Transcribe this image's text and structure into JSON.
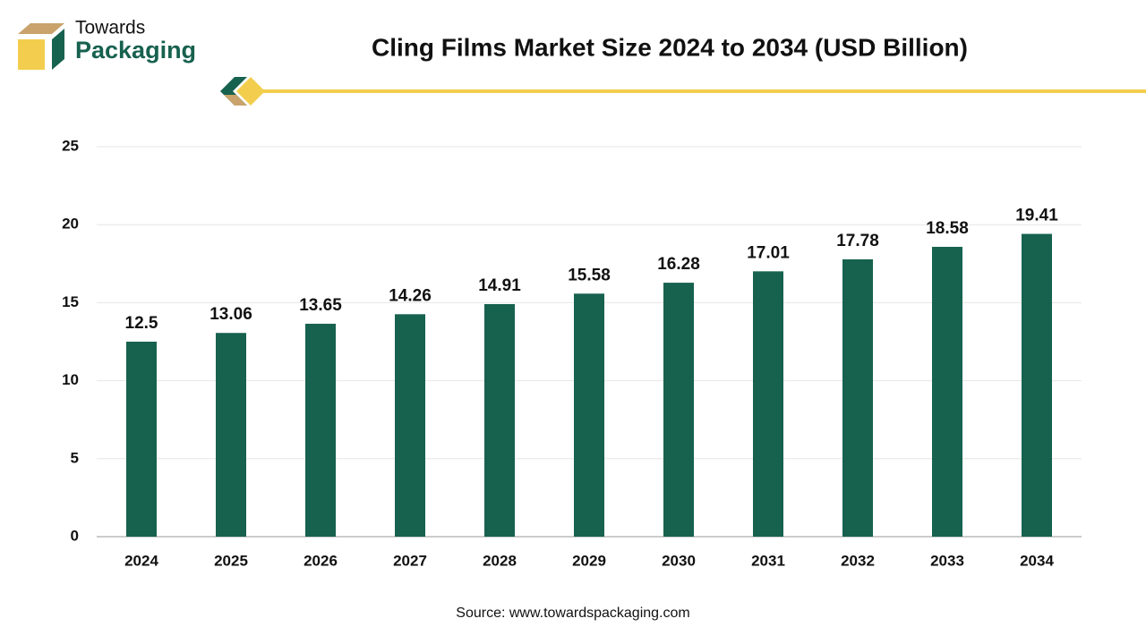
{
  "logo": {
    "line1": "Towards",
    "line2": "Packaging"
  },
  "chart_data": {
    "type": "bar",
    "title": "Cling Films Market Size 2024 to 2034 (USD Billion)",
    "categories": [
      "2024",
      "2025",
      "2026",
      "2027",
      "2028",
      "2029",
      "2030",
      "2031",
      "2032",
      "2033",
      "2034"
    ],
    "values": [
      12.5,
      13.06,
      13.65,
      14.26,
      14.91,
      15.58,
      16.28,
      17.01,
      17.78,
      18.58,
      19.41
    ],
    "color": "#17614f",
    "ylim": [
      0,
      25
    ],
    "yticks": [
      0,
      5,
      10,
      15,
      20,
      25
    ],
    "grid": true,
    "source": "Source: www.towardspackaging.com"
  }
}
